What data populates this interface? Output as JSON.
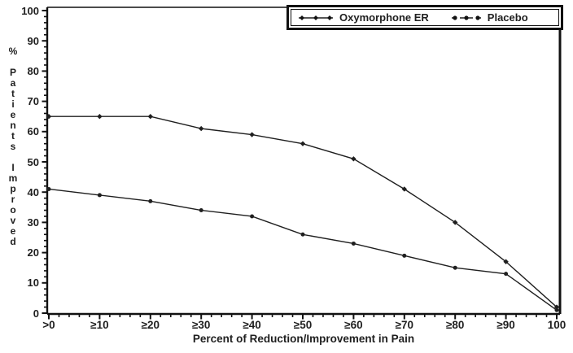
{
  "chart_data": {
    "type": "line",
    "title": "",
    "xlabel": "Percent of Reduction/Improvement in Pain",
    "ylabel": "% Patients Improved",
    "x_tick_labels": [
      ">0",
      "≥10",
      "≥20",
      "≥30",
      "≥40",
      "≥50",
      "≥60",
      "≥70",
      "≥80",
      "≥90",
      "100"
    ],
    "x_values": [
      0,
      10,
      20,
      30,
      40,
      50,
      60,
      70,
      80,
      90,
      100
    ],
    "y_ticks": [
      0,
      10,
      20,
      30,
      40,
      50,
      60,
      70,
      80,
      90,
      100
    ],
    "xlim": [
      0,
      100
    ],
    "ylim": [
      0,
      100
    ],
    "grid": false,
    "legend_position": "top-right",
    "axis_color": "#111111",
    "series": [
      {
        "name": "Oxymorphone ER",
        "marker": "diamond",
        "color": "#1f1f1f",
        "values": [
          65,
          65,
          65,
          61,
          59,
          56,
          51,
          41,
          30,
          17,
          2
        ]
      },
      {
        "name": "Placebo",
        "marker": "circle",
        "color": "#1f1f1f",
        "values": [
          41,
          39,
          37,
          34,
          32,
          26,
          23,
          19,
          15,
          13,
          1
        ]
      }
    ]
  }
}
